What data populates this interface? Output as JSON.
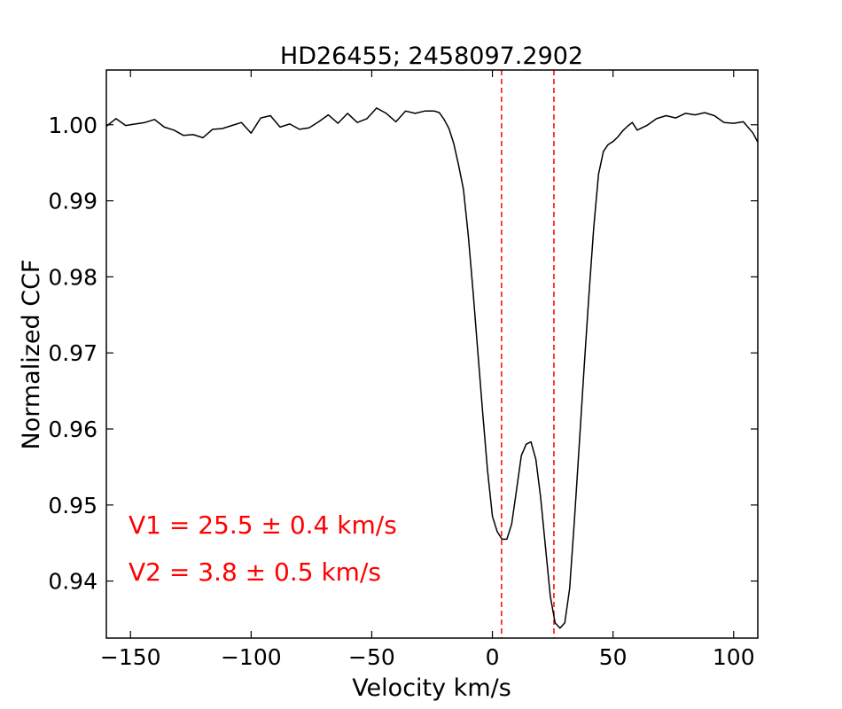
{
  "chart_data": {
    "type": "line",
    "title": "HD26455; 2458097.2902",
    "xlabel": "Velocity km/s",
    "ylabel": "Normalized CCF",
    "xlim": [
      -160,
      110
    ],
    "ylim": [
      0.9325,
      1.0072
    ],
    "x_ticks": [
      -150,
      -100,
      -50,
      0,
      50,
      100
    ],
    "x_tick_labels": [
      "−150",
      "−100",
      "−50",
      "0",
      "50",
      "100"
    ],
    "y_ticks": [
      0.94,
      0.95,
      0.96,
      0.97,
      0.98,
      0.99,
      1.0
    ],
    "y_tick_labels": [
      "0.94",
      "0.95",
      "0.96",
      "0.97",
      "0.98",
      "0.99",
      "1.00"
    ],
    "grid": false,
    "series": [
      {
        "color": "#000000",
        "x": [
          -160,
          -156,
          -152,
          -148,
          -144,
          -140,
          -136,
          -132,
          -128,
          -124,
          -120,
          -116,
          -112,
          -108,
          -104,
          -100,
          -96,
          -92,
          -88,
          -84,
          -80,
          -76,
          -72,
          -68,
          -64,
          -60,
          -56,
          -52,
          -48,
          -44,
          -40,
          -36,
          -32,
          -28,
          -24,
          -22,
          -20,
          -18,
          -16,
          -14,
          -12,
          -10,
          -8,
          -6,
          -4,
          -2,
          0,
          2,
          4,
          6,
          8,
          10,
          12,
          14,
          16,
          18,
          20,
          22,
          24,
          26,
          28,
          30,
          32,
          34,
          36,
          38,
          40,
          42,
          44,
          46,
          48,
          50,
          52,
          54,
          56,
          58,
          60,
          64,
          68,
          72,
          76,
          80,
          84,
          88,
          92,
          96,
          100,
          104,
          108,
          110
        ],
        "y": [
          0.9998,
          1.0008,
          0.9999,
          1.0001,
          1.0003,
          1.0007,
          0.9997,
          0.9993,
          0.9986,
          0.9987,
          0.9983,
          0.9994,
          0.9995,
          0.9999,
          1.0003,
          0.9989,
          1.0009,
          1.0012,
          0.9997,
          1.0001,
          0.9994,
          0.9996,
          1.0004,
          1.0013,
          1.0002,
          1.0015,
          1.0003,
          1.0008,
          1.0022,
          1.0015,
          1.0004,
          1.0018,
          1.0015,
          1.0018,
          1.0018,
          1.0016,
          1.0007,
          0.9995,
          0.9975,
          0.9947,
          0.9915,
          0.9855,
          0.978,
          0.97,
          0.962,
          0.9545,
          0.9485,
          0.9465,
          0.9455,
          0.9455,
          0.9475,
          0.952,
          0.9565,
          0.958,
          0.9583,
          0.956,
          0.951,
          0.9445,
          0.938,
          0.9345,
          0.9338,
          0.9345,
          0.939,
          0.948,
          0.958,
          0.968,
          0.9775,
          0.9865,
          0.9935,
          0.9965,
          0.9974,
          0.9978,
          0.9984,
          0.9992,
          0.9998,
          1.0003,
          0.9993,
          0.9999,
          1.0008,
          1.0012,
          1.0009,
          1.0015,
          1.0013,
          1.0016,
          1.0012,
          1.0003,
          1.0002,
          1.0004,
          0.9989,
          0.9977
        ]
      }
    ],
    "vlines": [
      {
        "x": 3.8,
        "color": "#ff0000",
        "style": "dashed"
      },
      {
        "x": 25.5,
        "color": "#ff0000",
        "style": "dashed"
      }
    ],
    "annotations": [
      {
        "text": "V1 = 25.5 ± 0.4 km/s",
        "color": "#ff0000"
      },
      {
        "text": "V2 = 3.8 ± 0.5 km/s",
        "color": "#ff0000"
      }
    ]
  }
}
